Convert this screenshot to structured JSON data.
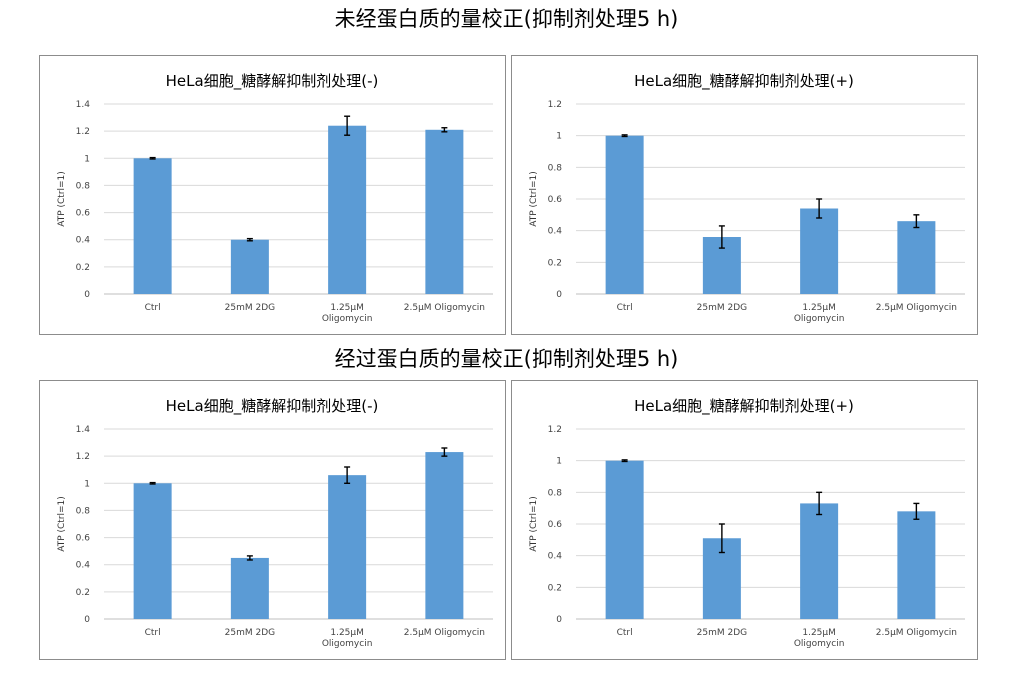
{
  "headers": {
    "top": "未经蛋白质的量校正(抑制剂处理5 h)",
    "bottom": "经过蛋白质的量校正(抑制剂处理5 h)"
  },
  "colors": {
    "bar": "#5b9bd5",
    "grid": "#d9d9d9",
    "error": "#000000"
  },
  "chart_data": [
    {
      "type": "bar",
      "title": "HeLa细胞_糖酵解抑制剂处理(-)",
      "ylabel": "ATP (Ctrl=1)",
      "xlabel": "",
      "ylim": [
        0,
        1.4
      ],
      "yticks": [
        "0",
        "0.2",
        "0.4",
        "0.6",
        "0.8",
        "1",
        "1.2",
        "1.4"
      ],
      "categories": [
        [
          "Ctrl"
        ],
        [
          "25mM 2DG"
        ],
        [
          "1.25μM",
          "Oligomycin"
        ],
        [
          "2.5μM Oligomycin"
        ]
      ],
      "values": [
        1.0,
        0.4,
        1.24,
        1.21
      ],
      "errors": [
        0.005,
        0.008,
        0.07,
        0.015
      ]
    },
    {
      "type": "bar",
      "title": "HeLa细胞_糖酵解抑制剂处理(+)",
      "ylabel": "ATP (Ctrl=1)",
      "xlabel": "",
      "ylim": [
        0,
        1.2
      ],
      "yticks": [
        "0",
        "0.2",
        "0.4",
        "0.6",
        "0.8",
        "1",
        "1.2"
      ],
      "categories": [
        [
          "Ctrl"
        ],
        [
          "25mM 2DG"
        ],
        [
          "1.25μM",
          "Oligomycin"
        ],
        [
          "2.5μM Oligomycin"
        ]
      ],
      "values": [
        1.0,
        0.36,
        0.54,
        0.46
      ],
      "errors": [
        0.005,
        0.07,
        0.06,
        0.04
      ]
    },
    {
      "type": "bar",
      "title": "HeLa细胞_糖酵解抑制剂处理(-)",
      "ylabel": "ATP (Ctrl=1)",
      "xlabel": "",
      "ylim": [
        0,
        1.4
      ],
      "yticks": [
        "0",
        "0.2",
        "0.4",
        "0.6",
        "0.8",
        "1",
        "1.2",
        "1.4"
      ],
      "categories": [
        [
          "Ctrl"
        ],
        [
          "25mM 2DG"
        ],
        [
          "1.25μM",
          "Oligomycin"
        ],
        [
          "2.5μM Oligomycin"
        ]
      ],
      "values": [
        1.0,
        0.45,
        1.06,
        1.23
      ],
      "errors": [
        0.005,
        0.015,
        0.06,
        0.03
      ]
    },
    {
      "type": "bar",
      "title": "HeLa细胞_糖酵解抑制剂处理(+)",
      "ylabel": "ATP (Ctrl=1)",
      "xlabel": "",
      "ylim": [
        0,
        1.2
      ],
      "yticks": [
        "0",
        "0.2",
        "0.4",
        "0.6",
        "0.8",
        "1",
        "1.2"
      ],
      "categories": [
        [
          "Ctrl"
        ],
        [
          "25mM 2DG"
        ],
        [
          "1.25μM",
          "Oligomycin"
        ],
        [
          "2.5μM Oligomycin"
        ]
      ],
      "values": [
        1.0,
        0.51,
        0.73,
        0.68
      ],
      "errors": [
        0.005,
        0.09,
        0.07,
        0.05
      ]
    }
  ]
}
